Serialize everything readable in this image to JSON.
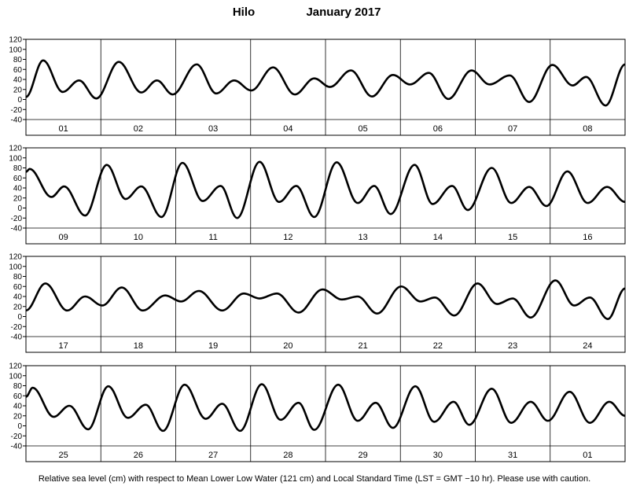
{
  "title": "Hilo",
  "subtitle": "January 2017",
  "note": "Relative sea level (cm) with respect to Mean Lower Low Water (121 cm) and Local Standard Time (LST = GMT −10 hr). Please use with caution.",
  "chart_data": [
    {
      "type": "line",
      "color": "#000000",
      "ylim": [
        -40,
        120
      ],
      "yticks": [
        -40,
        -20,
        0,
        20,
        40,
        60,
        80,
        100,
        120
      ],
      "xlim": [
        0,
        8
      ],
      "categories": [
        "01",
        "02",
        "03",
        "04",
        "05",
        "06",
        "07",
        "08"
      ],
      "x": [
        0,
        0.23,
        0.49,
        0.71,
        0.94,
        1.24,
        1.54,
        1.75,
        1.96,
        2.28,
        2.54,
        2.78,
        3.01,
        3.3,
        3.59,
        3.85,
        4.06,
        4.34,
        4.62,
        4.9,
        5.13,
        5.38,
        5.64,
        5.95,
        6.19,
        6.46,
        6.72,
        7.03,
        7.3,
        7.48,
        7.74,
        8
      ],
      "values": [
        5,
        78,
        15,
        38,
        2,
        75,
        14,
        38,
        10,
        70,
        12,
        38,
        18,
        64,
        10,
        42,
        25,
        58,
        6,
        49,
        30,
        53,
        1,
        58,
        30,
        48,
        -5,
        69,
        28,
        45,
        -12,
        70
      ]
    },
    {
      "type": "line",
      "color": "#000000",
      "ylim": [
        -40,
        120
      ],
      "yticks": [
        -40,
        -20,
        0,
        20,
        40,
        60,
        80,
        100,
        120
      ],
      "xlim": [
        0,
        8
      ],
      "categories": [
        "09",
        "10",
        "11",
        "12",
        "13",
        "14",
        "15",
        "16"
      ],
      "x": [
        0,
        0.05,
        0.34,
        0.51,
        0.79,
        1.08,
        1.33,
        1.54,
        1.81,
        2.09,
        2.36,
        2.6,
        2.82,
        3.12,
        3.38,
        3.61,
        3.85,
        4.15,
        4.43,
        4.65,
        4.87,
        5.19,
        5.43,
        5.69,
        5.9,
        6.22,
        6.48,
        6.72,
        6.95,
        7.23,
        7.5,
        7.76,
        8
      ],
      "values": [
        72,
        78,
        22,
        43,
        -15,
        86,
        18,
        43,
        -18,
        90,
        14,
        44,
        -20,
        92,
        12,
        44,
        -18,
        91,
        10,
        44,
        -12,
        86,
        8,
        44,
        -4,
        80,
        10,
        42,
        4,
        73,
        10,
        42,
        12
      ]
    },
    {
      "type": "line",
      "color": "#000000",
      "ylim": [
        -40,
        120
      ],
      "yticks": [
        -40,
        -20,
        0,
        20,
        40,
        60,
        80,
        100,
        120
      ],
      "xlim": [
        0,
        8
      ],
      "categories": [
        "17",
        "18",
        "19",
        "20",
        "21",
        "22",
        "23",
        "24"
      ],
      "x": [
        0,
        0.26,
        0.55,
        0.79,
        1.02,
        1.28,
        1.56,
        1.86,
        2.07,
        2.31,
        2.62,
        2.91,
        3.12,
        3.35,
        3.64,
        3.96,
        4.22,
        4.43,
        4.69,
        5.01,
        5.27,
        5.46,
        5.72,
        6.03,
        6.29,
        6.5,
        6.74,
        7.07,
        7.32,
        7.53,
        7.77,
        8
      ],
      "values": [
        12,
        66,
        12,
        40,
        22,
        58,
        12,
        42,
        30,
        51,
        12,
        46,
        36,
        46,
        8,
        54,
        34,
        40,
        6,
        60,
        30,
        38,
        2,
        66,
        25,
        36,
        -2,
        72,
        22,
        38,
        -5,
        56
      ]
    },
    {
      "type": "line",
      "color": "#000000",
      "ylim": [
        -40,
        120
      ],
      "yticks": [
        -40,
        -20,
        0,
        20,
        40,
        60,
        80,
        100,
        120
      ],
      "xlim": [
        0,
        8
      ],
      "categories": [
        "25",
        "26",
        "27",
        "28",
        "29",
        "30",
        "31",
        "01"
      ],
      "x": [
        0,
        0.09,
        0.37,
        0.58,
        0.83,
        1.1,
        1.36,
        1.6,
        1.83,
        2.12,
        2.4,
        2.62,
        2.86,
        3.15,
        3.4,
        3.64,
        3.85,
        4.17,
        4.43,
        4.67,
        4.9,
        5.2,
        5.45,
        5.71,
        5.92,
        6.22,
        6.48,
        6.74,
        6.97,
        7.26,
        7.53,
        7.79,
        8
      ],
      "values": [
        58,
        76,
        18,
        40,
        -7,
        79,
        16,
        42,
        -10,
        82,
        14,
        44,
        -10,
        83,
        12,
        46,
        -8,
        82,
        10,
        46,
        -4,
        79,
        8,
        48,
        2,
        74,
        6,
        48,
        10,
        68,
        6,
        48,
        20
      ]
    }
  ]
}
